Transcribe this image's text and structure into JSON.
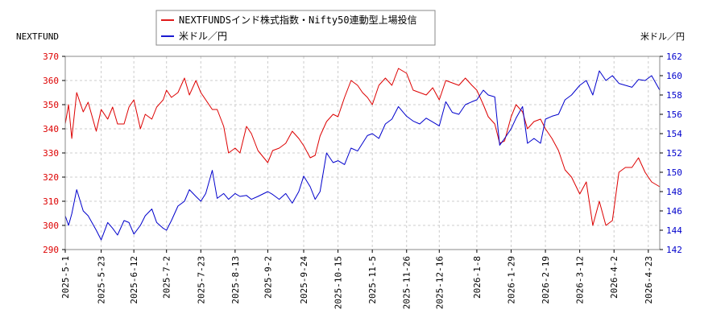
{
  "chart_data": {
    "type": "line",
    "left_axis_title": "NEXTFUND",
    "right_axis_title": "米ドル／円",
    "legend": [
      {
        "label": "NEXTFUNDSインド株式指数・Nifty50連動型上場投信",
        "color": "#dd0000"
      },
      {
        "label": "米ドル／円",
        "color": "#0000cc"
      }
    ],
    "legend_position": "top-center",
    "grid": true,
    "grid_color": "#cccccc",
    "left_tick_color": "#dd0000",
    "right_tick_color": "#0000cc",
    "x_range": [
      "2025-05-01",
      "2026-04-30"
    ],
    "left_ylim": [
      290,
      370
    ],
    "right_ylim": [
      142,
      162
    ],
    "left_ticks": [
      290,
      300,
      310,
      320,
      330,
      340,
      350,
      360,
      370
    ],
    "right_ticks": [
      142,
      144,
      146,
      148,
      150,
      152,
      154,
      156,
      158,
      160,
      162
    ],
    "x_ticks": [
      "2025-5-1",
      "2025-5-23",
      "2025-6-12",
      "2025-7-2",
      "2025-7-23",
      "2025-8-13",
      "2025-9-2",
      "2025-9-24",
      "2025-10-15",
      "2025-11-5",
      "2025-11-26",
      "2025-12-16",
      "2026-1-8",
      "2026-1-29",
      "2026-2-19",
      "2026-3-12",
      "2026-4-2",
      "2026-4-23"
    ],
    "series": [
      {
        "name": "NEXTFUNDSインド株式指数・Nifty50連動型上場投信",
        "axis": "left",
        "color": "#dd0000",
        "points": [
          [
            "2025-5-1",
            342
          ],
          [
            "2025-5-3",
            350
          ],
          [
            "2025-5-5",
            336
          ],
          [
            "2025-5-8",
            355
          ],
          [
            "2025-5-12",
            347
          ],
          [
            "2025-5-15",
            351
          ],
          [
            "2025-5-20",
            339
          ],
          [
            "2025-5-23",
            348
          ],
          [
            "2025-5-27",
            344
          ],
          [
            "2025-5-30",
            349
          ],
          [
            "2025-6-2",
            342
          ],
          [
            "2025-6-6",
            342
          ],
          [
            "2025-6-9",
            349
          ],
          [
            "2025-6-12",
            352
          ],
          [
            "2025-6-16",
            340
          ],
          [
            "2025-6-19",
            346
          ],
          [
            "2025-6-23",
            344
          ],
          [
            "2025-6-26",
            349
          ],
          [
            "2025-6-30",
            352
          ],
          [
            "2025-7-2",
            356
          ],
          [
            "2025-7-5",
            353
          ],
          [
            "2025-7-9",
            355
          ],
          [
            "2025-7-13",
            361
          ],
          [
            "2025-7-16",
            354
          ],
          [
            "2025-7-20",
            360
          ],
          [
            "2025-7-23",
            355
          ],
          [
            "2025-7-26",
            352
          ],
          [
            "2025-7-30",
            348
          ],
          [
            "2025-8-2",
            348
          ],
          [
            "2025-8-6",
            341
          ],
          [
            "2025-8-9",
            330
          ],
          [
            "2025-8-13",
            332
          ],
          [
            "2025-8-16",
            330
          ],
          [
            "2025-8-20",
            341
          ],
          [
            "2025-8-23",
            338
          ],
          [
            "2025-8-27",
            331
          ],
          [
            "2025-9-2",
            326
          ],
          [
            "2025-9-5",
            331
          ],
          [
            "2025-9-9",
            332
          ],
          [
            "2025-9-13",
            334
          ],
          [
            "2025-9-17",
            339
          ],
          [
            "2025-9-21",
            336
          ],
          [
            "2025-9-24",
            333
          ],
          [
            "2025-9-28",
            328
          ],
          [
            "2025-10-1",
            329
          ],
          [
            "2025-10-4",
            337
          ],
          [
            "2025-10-8",
            343
          ],
          [
            "2025-10-12",
            346
          ],
          [
            "2025-10-15",
            345
          ],
          [
            "2025-10-19",
            353
          ],
          [
            "2025-10-23",
            360
          ],
          [
            "2025-10-27",
            358
          ],
          [
            "2025-10-30",
            355
          ],
          [
            "2025-11-2",
            353
          ],
          [
            "2025-11-5",
            350
          ],
          [
            "2025-11-9",
            358
          ],
          [
            "2025-11-13",
            361
          ],
          [
            "2025-11-17",
            358
          ],
          [
            "2025-11-21",
            365
          ],
          [
            "2025-11-26",
            363
          ],
          [
            "2025-11-30",
            356
          ],
          [
            "2025-12-4",
            355
          ],
          [
            "2025-12-8",
            354
          ],
          [
            "2025-12-12",
            357
          ],
          [
            "2025-12-16",
            352
          ],
          [
            "2025-12-20",
            360
          ],
          [
            "2025-12-24",
            359
          ],
          [
            "2025-12-28",
            358
          ],
          [
            "2026-1-1",
            361
          ],
          [
            "2026-1-5",
            358
          ],
          [
            "2026-1-8",
            356
          ],
          [
            "2026-1-12",
            350
          ],
          [
            "2026-1-15",
            345
          ],
          [
            "2026-1-19",
            342
          ],
          [
            "2026-1-22",
            334
          ],
          [
            "2026-1-25",
            335
          ],
          [
            "2026-1-29",
            345
          ],
          [
            "2026-2-1",
            350
          ],
          [
            "2026-2-5",
            347
          ],
          [
            "2026-2-8",
            340
          ],
          [
            "2026-2-12",
            343
          ],
          [
            "2026-2-16",
            344
          ],
          [
            "2026-2-19",
            340
          ],
          [
            "2026-2-23",
            336
          ],
          [
            "2026-2-27",
            331
          ],
          [
            "2026-3-3",
            323
          ],
          [
            "2026-3-7",
            320
          ],
          [
            "2026-3-12",
            313
          ],
          [
            "2026-3-16",
            318
          ],
          [
            "2026-3-20",
            300
          ],
          [
            "2026-3-24",
            310
          ],
          [
            "2026-3-28",
            300
          ],
          [
            "2026-4-1",
            302
          ],
          [
            "2026-4-5",
            322
          ],
          [
            "2026-4-9",
            324
          ],
          [
            "2026-4-13",
            324
          ],
          [
            "2026-4-17",
            328
          ],
          [
            "2026-4-21",
            322
          ],
          [
            "2026-4-25",
            318
          ],
          [
            "2026-4-30",
            316
          ]
        ]
      },
      {
        "name": "米ドル／円",
        "axis": "right",
        "color": "#0000cc",
        "points": [
          [
            "2025-5-1",
            145.5
          ],
          [
            "2025-5-3",
            144.5
          ],
          [
            "2025-5-5",
            145.7
          ],
          [
            "2025-5-8",
            148.2
          ],
          [
            "2025-5-12",
            146.0
          ],
          [
            "2025-5-15",
            145.5
          ],
          [
            "2025-5-20",
            144.0
          ],
          [
            "2025-5-23",
            143.0
          ],
          [
            "2025-5-27",
            144.8
          ],
          [
            "2025-5-30",
            144.2
          ],
          [
            "2025-6-2",
            143.5
          ],
          [
            "2025-6-6",
            145.0
          ],
          [
            "2025-6-9",
            144.8
          ],
          [
            "2025-6-12",
            143.6
          ],
          [
            "2025-6-16",
            144.5
          ],
          [
            "2025-6-19",
            145.5
          ],
          [
            "2025-6-23",
            146.2
          ],
          [
            "2025-6-26",
            144.8
          ],
          [
            "2025-6-30",
            144.2
          ],
          [
            "2025-7-2",
            144.0
          ],
          [
            "2025-7-5",
            145.0
          ],
          [
            "2025-7-9",
            146.5
          ],
          [
            "2025-7-13",
            147.0
          ],
          [
            "2025-7-16",
            148.2
          ],
          [
            "2025-7-20",
            147.5
          ],
          [
            "2025-7-23",
            147.0
          ],
          [
            "2025-7-26",
            147.8
          ],
          [
            "2025-7-30",
            150.2
          ],
          [
            "2025-8-2",
            147.3
          ],
          [
            "2025-8-6",
            147.8
          ],
          [
            "2025-8-9",
            147.2
          ],
          [
            "2025-8-13",
            147.8
          ],
          [
            "2025-8-16",
            147.5
          ],
          [
            "2025-8-20",
            147.6
          ],
          [
            "2025-8-23",
            147.2
          ],
          [
            "2025-8-27",
            147.5
          ],
          [
            "2025-9-2",
            148.0
          ],
          [
            "2025-9-5",
            147.7
          ],
          [
            "2025-9-9",
            147.2
          ],
          [
            "2025-9-13",
            147.8
          ],
          [
            "2025-9-17",
            146.8
          ],
          [
            "2025-9-21",
            148.0
          ],
          [
            "2025-9-24",
            149.6
          ],
          [
            "2025-9-28",
            148.5
          ],
          [
            "2025-10-1",
            147.2
          ],
          [
            "2025-10-4",
            148.0
          ],
          [
            "2025-10-8",
            152.0
          ],
          [
            "2025-10-12",
            151.0
          ],
          [
            "2025-10-15",
            151.2
          ],
          [
            "2025-10-19",
            150.8
          ],
          [
            "2025-10-23",
            152.5
          ],
          [
            "2025-10-27",
            152.2
          ],
          [
            "2025-10-30",
            153.0
          ],
          [
            "2025-11-2",
            153.8
          ],
          [
            "2025-11-5",
            154.0
          ],
          [
            "2025-11-9",
            153.5
          ],
          [
            "2025-11-13",
            155.0
          ],
          [
            "2025-11-17",
            155.5
          ],
          [
            "2025-11-21",
            156.8
          ],
          [
            "2025-11-26",
            155.8
          ],
          [
            "2025-11-30",
            155.3
          ],
          [
            "2025-12-4",
            155.0
          ],
          [
            "2025-12-8",
            155.6
          ],
          [
            "2025-12-12",
            155.2
          ],
          [
            "2025-12-16",
            154.8
          ],
          [
            "2025-12-20",
            157.3
          ],
          [
            "2025-12-24",
            156.2
          ],
          [
            "2025-12-28",
            156.0
          ],
          [
            "2026-1-1",
            157.0
          ],
          [
            "2026-1-5",
            157.3
          ],
          [
            "2026-1-8",
            157.5
          ],
          [
            "2026-1-12",
            158.5
          ],
          [
            "2026-1-15",
            158.0
          ],
          [
            "2026-1-19",
            157.8
          ],
          [
            "2026-1-22",
            152.8
          ],
          [
            "2026-1-25",
            153.5
          ],
          [
            "2026-1-29",
            154.5
          ],
          [
            "2026-2-1",
            155.6
          ],
          [
            "2026-2-5",
            156.8
          ],
          [
            "2026-2-8",
            153.0
          ],
          [
            "2026-2-12",
            153.5
          ],
          [
            "2026-2-16",
            153.0
          ],
          [
            "2026-2-19",
            155.5
          ],
          [
            "2026-2-23",
            155.8
          ],
          [
            "2026-2-27",
            156.0
          ],
          [
            "2026-3-3",
            157.5
          ],
          [
            "2026-3-7",
            158.0
          ],
          [
            "2026-3-12",
            159.0
          ],
          [
            "2026-3-16",
            159.5
          ],
          [
            "2026-3-20",
            158.0
          ],
          [
            "2026-3-24",
            160.5
          ],
          [
            "2026-3-28",
            159.5
          ],
          [
            "2026-4-1",
            160.0
          ],
          [
            "2026-4-5",
            159.2
          ],
          [
            "2026-4-9",
            159.0
          ],
          [
            "2026-4-13",
            158.8
          ],
          [
            "2026-4-17",
            159.6
          ],
          [
            "2026-4-21",
            159.5
          ],
          [
            "2026-4-25",
            160.0
          ],
          [
            "2026-4-30",
            158.5
          ]
        ]
      }
    ]
  }
}
